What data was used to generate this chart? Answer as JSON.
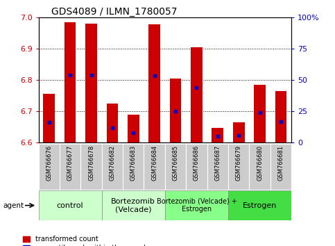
{
  "title": "GDS4089 / ILMN_1780057",
  "samples": [
    "GSM766676",
    "GSM766677",
    "GSM766678",
    "GSM766682",
    "GSM766683",
    "GSM766684",
    "GSM766685",
    "GSM766686",
    "GSM766687",
    "GSM766679",
    "GSM766680",
    "GSM766681"
  ],
  "bar_tops": [
    6.755,
    6.985,
    6.98,
    6.725,
    6.69,
    6.978,
    6.805,
    6.905,
    6.648,
    6.665,
    6.785,
    6.765
  ],
  "bar_base": 6.6,
  "blue_dots": [
    6.665,
    6.815,
    6.815,
    6.648,
    6.632,
    6.813,
    6.7,
    6.775,
    6.62,
    6.622,
    6.695,
    6.668
  ],
  "ylim": [
    6.6,
    7.0
  ],
  "yticks": [
    6.6,
    6.7,
    6.8,
    6.9,
    7.0
  ],
  "right_yticks": [
    0,
    25,
    50,
    75,
    100
  ],
  "right_ylabels": [
    "0",
    "25",
    "50",
    "75",
    "100%"
  ],
  "groups": [
    {
      "label": "control",
      "start": 0,
      "end": 3,
      "color": "#ccffcc",
      "fontsize": 8
    },
    {
      "label": "Bortezomib\n(Velcade)",
      "start": 3,
      "end": 6,
      "color": "#ccffcc",
      "fontsize": 8
    },
    {
      "label": "Bortezomib (Velcade) +\nEstrogen",
      "start": 6,
      "end": 9,
      "color": "#88ff88",
      "fontsize": 7
    },
    {
      "label": "Estrogen",
      "start": 9,
      "end": 12,
      "color": "#44dd44",
      "fontsize": 8
    }
  ],
  "bar_color": "#cc0000",
  "dot_color": "#0000cc",
  "bar_width": 0.55,
  "left_label_color": "#cc0000",
  "right_label_color": "#0000cc",
  "tick_bg_color": "#cccccc",
  "bg_color": "#ffffff"
}
